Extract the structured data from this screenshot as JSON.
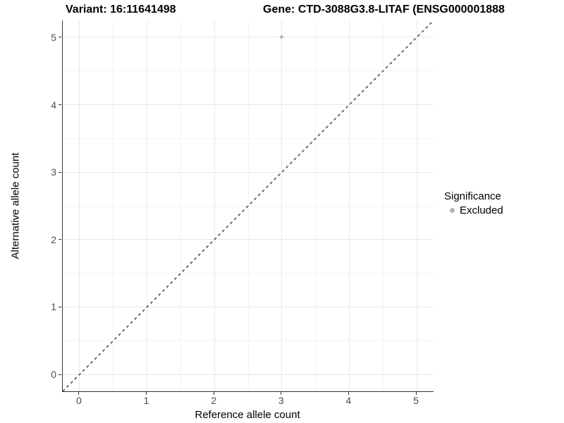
{
  "header": {
    "title_left": "Variant: 16:11641498",
    "title_right": "Gene: CTD-3088G3.8-LITAF (ENSG000001888"
  },
  "chart_data": {
    "type": "scatter",
    "title_left": "Variant: 16:11641498",
    "title_right": "Gene: CTD-3088G3.8-LITAF (ENSG000001888",
    "xlabel": "Reference allele count",
    "ylabel": "Alternative allele count",
    "xlim": [
      -0.25,
      5.25
    ],
    "ylim": [
      -0.25,
      5.25
    ],
    "x_ticks": [
      0,
      1,
      2,
      3,
      4,
      5
    ],
    "y_ticks": [
      0,
      1,
      2,
      3,
      4,
      5
    ],
    "grid": "major and minor (half-unit) gridlines on",
    "reference_line": {
      "kind": "identity y=x",
      "style": "dashed",
      "color": "#1a1a1a"
    },
    "series": [
      {
        "name": "Excluded",
        "color": "#b5b5b5",
        "points": [
          {
            "x": 3,
            "y": 5
          }
        ]
      }
    ],
    "legend": {
      "position": "right",
      "title": "Significance",
      "items": [
        {
          "label": "Excluded",
          "color": "#b5b5b5"
        }
      ]
    },
    "colors": {
      "major_grid": "#e7e7e7",
      "minor_grid": "#f3f3f3",
      "axis_line": "#333333",
      "tick_text": "#4d4d4d",
      "point_gray": "#b5b5b5"
    }
  }
}
